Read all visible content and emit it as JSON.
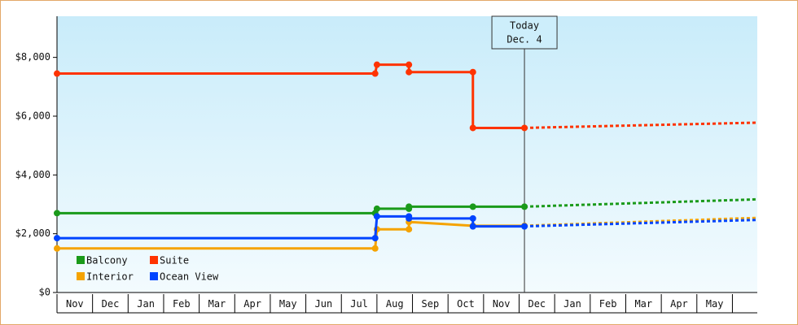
{
  "chart_data": {
    "type": "step-line",
    "ylim": [
      0,
      9400
    ],
    "yticks": [
      {
        "value": 0,
        "label": "$0"
      },
      {
        "value": 2000,
        "label": "$2,000"
      },
      {
        "value": 4000,
        "label": "$4,000"
      },
      {
        "value": 6000,
        "label": "$6,000"
      },
      {
        "value": 8000,
        "label": "$8,000"
      }
    ],
    "xlim": [
      0,
      19.7
    ],
    "xticks": [
      {
        "value": 0,
        "label": "Nov"
      },
      {
        "value": 1,
        "label": "Dec"
      },
      {
        "value": 2,
        "label": "Jan"
      },
      {
        "value": 3,
        "label": "Feb"
      },
      {
        "value": 4,
        "label": "Mar"
      },
      {
        "value": 5,
        "label": "Apr"
      },
      {
        "value": 6,
        "label": "May"
      },
      {
        "value": 7,
        "label": "Jun"
      },
      {
        "value": 8,
        "label": "Jul"
      },
      {
        "value": 9,
        "label": "Aug"
      },
      {
        "value": 10,
        "label": "Sep"
      },
      {
        "value": 11,
        "label": "Oct"
      },
      {
        "value": 12,
        "label": "Nov"
      },
      {
        "value": 13,
        "label": "Dec"
      },
      {
        "value": 14,
        "label": "Jan"
      },
      {
        "value": 15,
        "label": "Feb"
      },
      {
        "value": 16,
        "label": "Mar"
      },
      {
        "value": 17,
        "label": "Apr"
      },
      {
        "value": 18,
        "label": "May"
      }
    ],
    "grid": false,
    "legend": "bottom-left",
    "annotation": {
      "text": [
        "Today",
        "Dec. 4"
      ],
      "x": 13.15
    },
    "series": [
      {
        "name": "Balcony",
        "color": "#1a9a1a",
        "x": [
          0,
          8.95,
          9.0,
          9.9,
          9.9,
          11.7,
          13.15
        ],
        "values": [
          2700,
          2700,
          2850,
          2850,
          2920,
          2920,
          2920
        ],
        "forecast_x": [
          13.15,
          19.7
        ],
        "forecast_values": [
          2920,
          3170
        ]
      },
      {
        "name": "Suite",
        "color": "#ff3300",
        "x": [
          0,
          8.95,
          9.0,
          9.9,
          9.9,
          11.7,
          11.7,
          13.15
        ],
        "values": [
          7450,
          7450,
          7750,
          7750,
          7500,
          7500,
          5600,
          5600
        ],
        "forecast_x": [
          13.15,
          19.7
        ],
        "forecast_values": [
          5600,
          5780
        ]
      },
      {
        "name": "Interior",
        "color": "#f5a300",
        "x": [
          0,
          8.95,
          9.0,
          9.9,
          9.9,
          11.7,
          13.15
        ],
        "values": [
          1500,
          1500,
          2150,
          2150,
          2400,
          2270,
          2270
        ],
        "forecast_x": [
          13.15,
          19.7
        ],
        "forecast_values": [
          2270,
          2540
        ]
      },
      {
        "name": "Ocean View",
        "color": "#0044ff",
        "x": [
          0,
          8.95,
          9.0,
          9.9,
          9.9,
          11.7,
          11.7,
          13.15
        ],
        "values": [
          1850,
          1850,
          2590,
          2590,
          2520,
          2520,
          2250,
          2250
        ],
        "forecast_x": [
          13.15,
          19.7
        ],
        "forecast_values": [
          2250,
          2470
        ]
      }
    ]
  }
}
